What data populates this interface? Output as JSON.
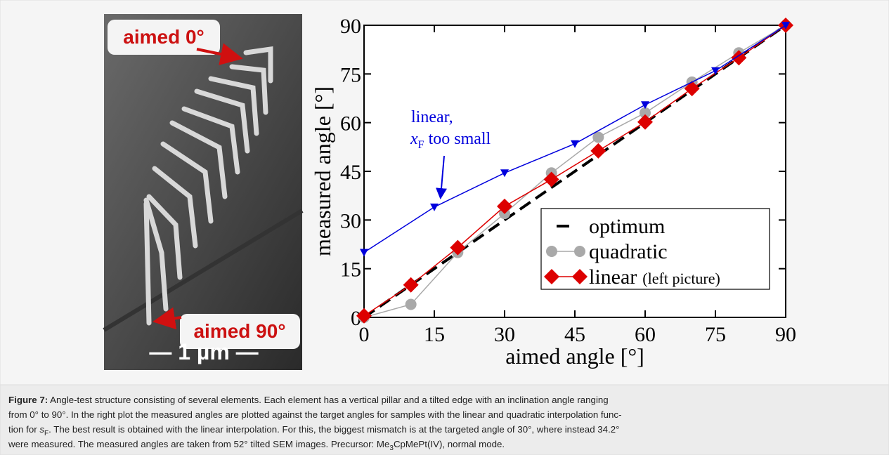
{
  "image": {
    "label_top": "aimed 0°",
    "label_bottom": "aimed 90°",
    "scale_bar": "— 1 µm —"
  },
  "chart_data": {
    "type": "line",
    "x_label": "aimed angle [°]",
    "y_label": "measured angle [°]",
    "xlim": [
      0,
      90
    ],
    "ylim": [
      0,
      90
    ],
    "xticks": [
      0,
      15,
      30,
      45,
      60,
      75,
      90
    ],
    "yticks": [
      0,
      15,
      30,
      45,
      60,
      75,
      90
    ],
    "series": [
      {
        "name": "optimum",
        "color": "#000000",
        "marker": "none",
        "dash": true,
        "x": [
          0,
          90
        ],
        "values": [
          0,
          90
        ]
      },
      {
        "name": "quadratic",
        "color": "#a9a9a9",
        "marker": "circle",
        "x": [
          0,
          10,
          20,
          30,
          40,
          50,
          60,
          70,
          80,
          90
        ],
        "values": [
          0,
          4,
          20,
          32,
          44.5,
          55.5,
          63,
          72.5,
          81.5,
          90
        ]
      },
      {
        "name": "linear",
        "legend_note": "(left picture)",
        "color": "#dd0000",
        "marker": "diamond",
        "x": [
          0,
          10,
          20,
          30,
          40,
          50,
          60,
          70,
          80,
          90
        ],
        "values": [
          0.5,
          10,
          21.5,
          34.2,
          42.5,
          51.3,
          60.2,
          70.5,
          80,
          90
        ]
      },
      {
        "color": "#0000dd",
        "marker": "triangle",
        "legend": false,
        "x": [
          0,
          15,
          30,
          45,
          60,
          75,
          90
        ],
        "values": [
          20,
          34,
          44.5,
          53.5,
          65.5,
          76,
          90
        ]
      }
    ],
    "annotation": {
      "line1": "linear,",
      "line2": [
        {
          "text": "x"
        },
        {
          "text": "F",
          "style": "sub"
        },
        {
          "text": " too small"
        }
      ]
    }
  },
  "caption": {
    "label": "Figure 7:",
    "lines": [
      [
        {
          "text": " Angle-test structure consisting of several elements. Each element has a vertical pillar and a tilted edge with an inclination angle ranging"
        }
      ],
      [
        {
          "text": "from 0° to 90°. In the right plot the measured angles are plotted against the target angles for samples with the linear and quadratic interpolation func-"
        }
      ],
      [
        {
          "text": "tion for "
        },
        {
          "text": "s",
          "style": "i"
        },
        {
          "text": "F",
          "style": "sub"
        },
        {
          "text": ". The best result is obtained with the linear interpolation. For this, the biggest mismatch is at the targeted angle of 30°, where instead 34.2°"
        }
      ],
      [
        {
          "text": "were measured. The measured angles are taken from 52° tilted SEM images. Precursor: Me"
        },
        {
          "text": "3",
          "style": "sub"
        },
        {
          "text": "CpMePt(IV), normal mode."
        }
      ]
    ]
  }
}
